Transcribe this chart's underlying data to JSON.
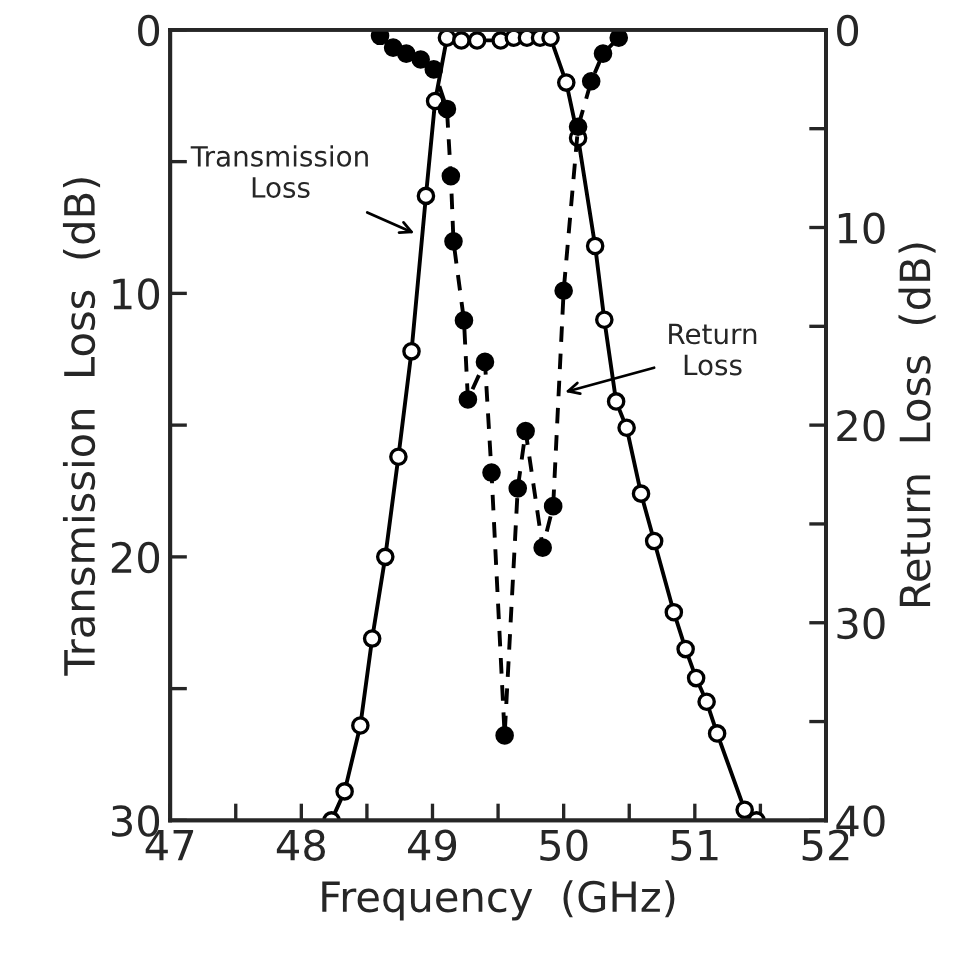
{
  "chart_data": {
    "type": "line",
    "xlabel": "Frequency  (GHz)",
    "ylabel": "Transmission  Loss  (dB)",
    "y2label": "Return  Loss  (dB)",
    "xlim": [
      47,
      52
    ],
    "xticks": [
      47,
      {
        "value": 47.5,
        "label": null
      },
      48,
      {
        "value": 48.5,
        "label": null
      },
      49,
      {
        "value": 49.5,
        "label": null
      },
      50,
      {
        "value": 50.5,
        "label": null
      },
      51,
      {
        "value": 51.5,
        "label": null
      },
      52
    ],
    "ylim": [
      30,
      0
    ],
    "yticks": [
      0,
      {
        "value": 5,
        "label": null
      },
      10,
      {
        "value": 15,
        "label": null
      },
      20,
      {
        "value": 25,
        "label": null
      },
      30
    ],
    "y2lim": [
      40,
      0
    ],
    "y2ticks": [
      0,
      {
        "value": 5,
        "label": null
      },
      10,
      {
        "value": 15,
        "label": null
      },
      20,
      {
        "value": 25,
        "label": null
      },
      30,
      {
        "value": 35,
        "label": null
      },
      40
    ],
    "grid": false,
    "legend": false,
    "annotations": [
      {
        "text": "Transmission\nLoss",
        "x": 48.9,
        "y": 7.8
      },
      {
        "text": "Return\nLoss",
        "x": 49.97,
        "y": 13.8
      }
    ],
    "series": [
      {
        "color": "#000000",
        "marker": "circle",
        "line_style": "solid",
        "x": [
          48.23,
          48.33,
          48.45,
          48.54,
          48.64,
          48.74,
          48.84,
          48.95,
          49.02,
          49.11,
          49.22,
          49.34,
          49.52,
          49.62,
          49.72,
          49.82,
          49.9,
          50.02,
          50.11,
          50.24,
          50.31,
          50.4,
          50.48,
          50.59,
          50.69,
          50.84,
          50.93,
          51.01,
          51.09,
          51.17,
          51.38,
          51.47
        ],
        "values": [
          30,
          28.9,
          26.4,
          23.1,
          20.0,
          16.2,
          12.2,
          6.3,
          2.7,
          0.3,
          0.4,
          0.4,
          0.4,
          0.3,
          0.3,
          0.3,
          0.3,
          2.0,
          4.1,
          8.2,
          11.0,
          14.1,
          15.1,
          17.6,
          19.4,
          22.1,
          23.5,
          24.6,
          25.5,
          26.7,
          29.6,
          30
        ]
      },
      {
        "color": "#000000",
        "marker": "circle",
        "line_style": "dashed",
        "axis": "y2",
        "x": [
          48.6,
          48.7,
          48.8,
          48.91,
          49.01,
          49.11,
          49.14,
          49.16,
          49.24,
          49.27,
          49.4,
          49.45,
          49.55,
          49.65,
          49.71,
          49.84,
          49.92,
          50.0,
          50.11,
          50.21,
          50.3,
          50.42
        ],
        "values": [
          0.3,
          0.9,
          1.2,
          1.5,
          2.0,
          4.0,
          7.4,
          10.7,
          14.7,
          18.7,
          16.8,
          22.4,
          35.7,
          23.2,
          20.3,
          26.2,
          24.1,
          13.2,
          4.9,
          2.6,
          1.2,
          0.4
        ]
      }
    ]
  }
}
